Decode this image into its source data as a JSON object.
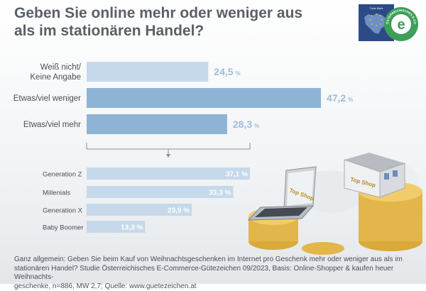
{
  "title_line1": "Geben Sie online mehr oder weniger aus",
  "title_line2": "als im stationären Handel?",
  "seal": {
    "small_text": "Trust Mark",
    "ring_text": "ÖSTERREICHISCHES E-COMMERCE-GÜTEZEICHEN",
    "url": "www.guetezeichen.at"
  },
  "illustration": {
    "laptop_label": "Top Shop",
    "house_label": "Top Shop"
  },
  "colors": {
    "light_bar": "#c5d9ea",
    "dark_bar": "#8db4d4",
    "value_text": "#9dbdd9",
    "seal_green": "#3e9e5a",
    "seal_blue": "#2c4b86"
  },
  "chart_data": [
    {
      "type": "bar",
      "orientation": "horizontal",
      "categories": [
        "Weiß nicht/\nKeine Angabe",
        "Etwas/viel weniger",
        "Etwas/viel mehr"
      ],
      "values": [
        24.5,
        47.2,
        28.3
      ],
      "value_labels": [
        "24,5",
        "47,2",
        "28,3"
      ],
      "unit": "%",
      "highlight": [
        false,
        true,
        true
      ]
    },
    {
      "type": "bar",
      "orientation": "horizontal",
      "categories": [
        "Generation Z",
        "Millenials",
        "Generation X",
        "Baby Boomer"
      ],
      "values": [
        37.1,
        33.3,
        23.9,
        13.3
      ],
      "value_labels": [
        "37,1 %",
        "33,3 %",
        "23,9 %",
        "13,3 %"
      ]
    }
  ],
  "footer_line1": "Ganz allgemein: Geben Sie beim Kauf von Weihnachtsgeschenken im Internet pro Geschenk mehr oder weniger aus als im",
  "footer_line2": "stationären Handel? Studie Österreichisches E-Commerce-Gütezeichen 09/2023, Basis: Online-Shopper & kaufen heuer Weihnachts-",
  "footer_line3": "geschenke, n=886, MW 2,7; Quelle: www.guetezeichen.at"
}
